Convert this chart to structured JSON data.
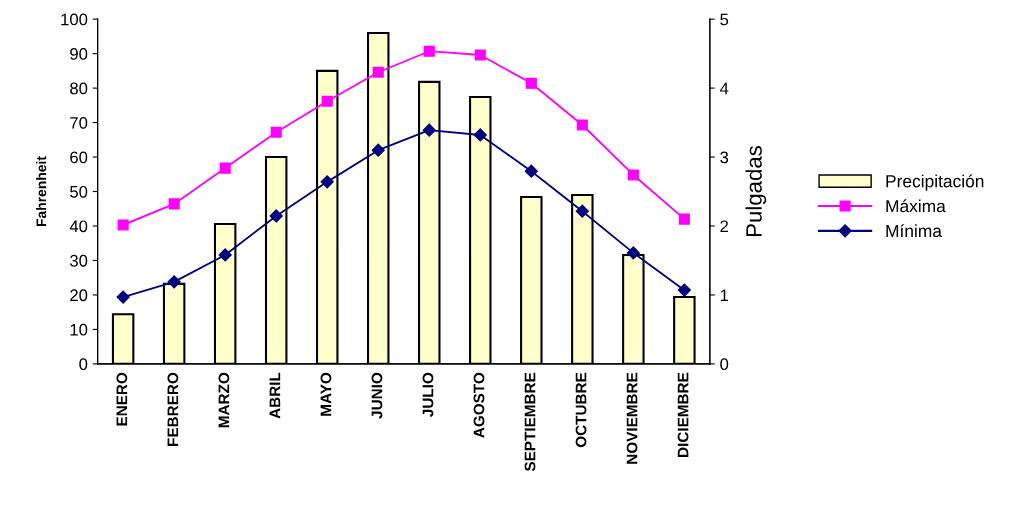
{
  "chart_data": {
    "type": "bar",
    "ylabel": "Fahrenheit",
    "y2label": "Pulgadas",
    "categories": [
      "ENERO",
      "FEBRERO",
      "MARZO",
      "ABRIL",
      "MAYO",
      "JUNIO",
      "JULIO",
      "AGOSTO",
      "SEPTIEMBRE",
      "OCTUBRE",
      "NOVIEMBRE",
      "DICIEMBRE"
    ],
    "series": [
      {
        "name": "Precipitación",
        "axis": "y2",
        "color": "#ffffcc",
        "values": [
          0.72,
          1.16,
          2.03,
          3.0,
          4.25,
          4.8,
          4.09,
          3.87,
          2.42,
          2.45,
          1.58,
          0.97
        ]
      },
      {
        "name": "Máxima",
        "type": "line",
        "color": "#ff00ff",
        "marker": "square",
        "values": [
          40.3,
          46.4,
          56.8,
          67.2,
          76.2,
          84.6,
          90.7,
          89.6,
          81.4,
          69.3,
          54.8,
          42.0
        ]
      },
      {
        "name": "Mínima",
        "type": "line",
        "color": "#000080",
        "marker": "diamond",
        "values": [
          19.4,
          23.8,
          31.6,
          42.9,
          52.8,
          62.0,
          67.8,
          66.4,
          55.9,
          44.3,
          32.2,
          21.4
        ]
      }
    ],
    "ylim": [
      0,
      100
    ],
    "yticks": [
      0,
      10,
      20,
      30,
      40,
      50,
      60,
      70,
      80,
      90,
      100
    ],
    "y2lim": [
      0,
      5
    ],
    "y2ticks": [
      0,
      1,
      2,
      3,
      4,
      5
    ],
    "legend": "right",
    "grid": false
  }
}
